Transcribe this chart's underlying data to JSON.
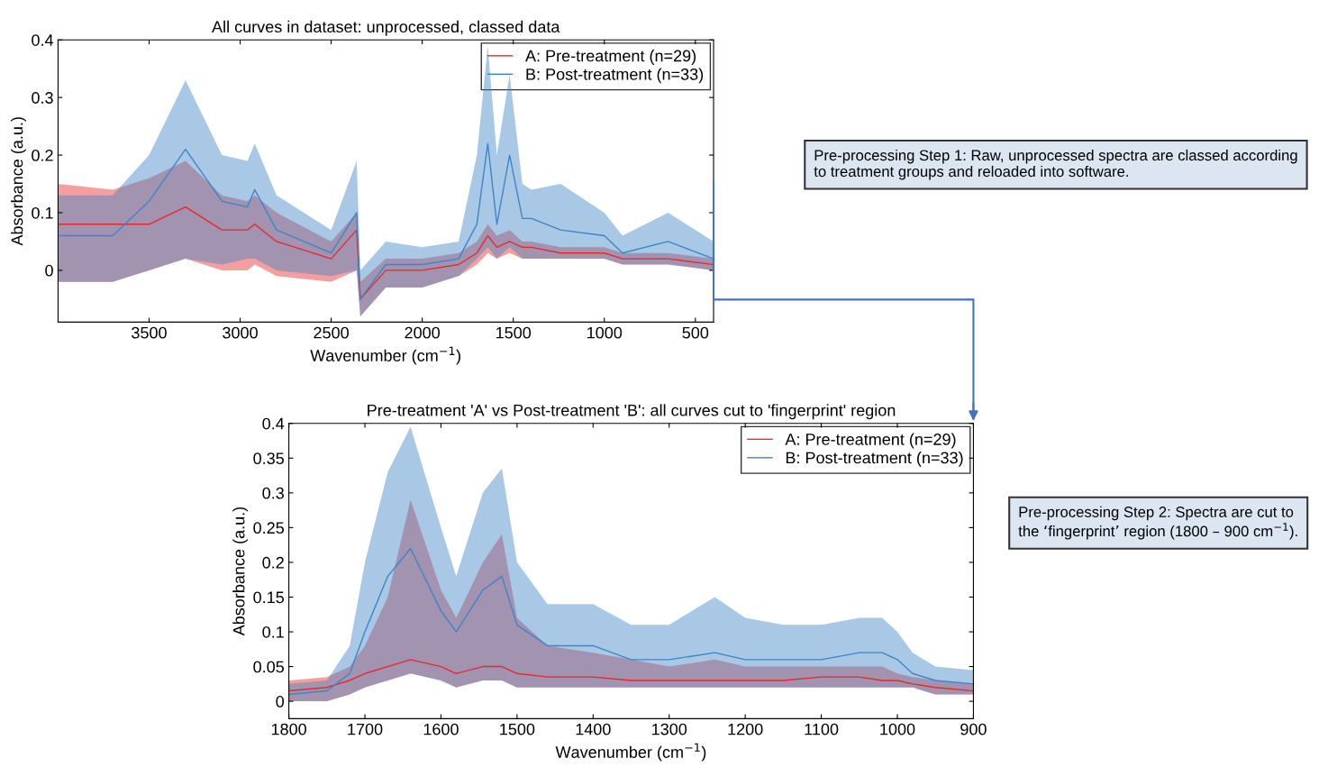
{
  "chart_data": [
    {
      "type": "line",
      "title": "All curves in dataset: unprocessed, classed data",
      "xlabel": "Wavenumber (cm$^{−1}$)",
      "ylabel": "Absorbance (a.u.)",
      "x": [
        4000,
        3700,
        3500,
        3300,
        3100,
        2960,
        2920,
        2800,
        2500,
        2360,
        2340,
        2200,
        2000,
        1800,
        1700,
        1640,
        1590,
        1520,
        1450,
        1400,
        1240,
        1000,
        900,
        650,
        400
      ],
      "series": [
        {
          "name": "A: Pre-treatment (n=29)",
          "color": "#e8282b",
          "values": [
            0.08,
            0.08,
            0.08,
            0.11,
            0.07,
            0.07,
            0.08,
            0.05,
            0.02,
            0.07,
            -0.05,
            0.0,
            0.0,
            0.01,
            0.03,
            0.06,
            0.04,
            0.05,
            0.04,
            0.04,
            0.03,
            0.03,
            0.02,
            0.02,
            0.01
          ],
          "lower": [
            -0.02,
            -0.02,
            0.0,
            0.02,
            0.0,
            0.0,
            0.01,
            -0.01,
            -0.02,
            0.0,
            -0.08,
            -0.03,
            -0.03,
            -0.01,
            0.01,
            0.03,
            0.02,
            0.03,
            0.02,
            0.02,
            0.02,
            0.02,
            0.01,
            0.01,
            0.0
          ],
          "upper": [
            0.15,
            0.14,
            0.16,
            0.19,
            0.13,
            0.12,
            0.13,
            0.1,
            0.05,
            0.1,
            -0.02,
            0.02,
            0.02,
            0.03,
            0.05,
            0.08,
            0.06,
            0.07,
            0.05,
            0.05,
            0.04,
            0.04,
            0.03,
            0.03,
            0.02
          ]
        },
        {
          "name": "B: Post-treatment (n=33)",
          "color": "#3d85c6",
          "values": [
            0.06,
            0.06,
            0.12,
            0.21,
            0.12,
            0.11,
            0.14,
            0.07,
            0.03,
            0.1,
            -0.05,
            0.01,
            0.01,
            0.02,
            0.08,
            0.22,
            0.08,
            0.2,
            0.09,
            0.09,
            0.07,
            0.06,
            0.03,
            0.05,
            0.02
          ],
          "lower": [
            -0.02,
            -0.02,
            0.0,
            0.02,
            0.01,
            0.02,
            0.02,
            0.0,
            -0.01,
            0.0,
            -0.08,
            -0.03,
            -0.03,
            -0.01,
            0.02,
            0.04,
            0.02,
            0.04,
            0.02,
            0.02,
            0.02,
            0.02,
            0.01,
            0.01,
            0.0
          ],
          "upper": [
            0.13,
            0.13,
            0.2,
            0.33,
            0.2,
            0.19,
            0.22,
            0.13,
            0.07,
            0.19,
            0.0,
            0.05,
            0.04,
            0.05,
            0.2,
            0.39,
            0.2,
            0.34,
            0.15,
            0.14,
            0.15,
            0.1,
            0.06,
            0.1,
            0.05
          ]
        }
      ],
      "xlim": [
        4000,
        400
      ],
      "xticks": [
        3500,
        3000,
        2500,
        2000,
        1500,
        1000,
        500
      ],
      "ylim": [
        -0.09,
        0.4
      ],
      "yticks": [
        0,
        0.1,
        0.2,
        0.3,
        0.4
      ],
      "legend": "top right",
      "grid": false,
      "line_style": "solid",
      "annotations": [
        "Pre-processing Step 1: Raw, unprocessed spectra are classed according to treatment groups and reloaded into software."
      ]
    },
    {
      "type": "line",
      "title": "Pre-treatment 'A' vs Post-treatment 'B': all curves cut to 'fingerprint' region",
      "xlabel": "Wavenumber (cm$^{−1}$)",
      "ylabel": "Absorbance (a.u.)",
      "x": [
        1800,
        1750,
        1720,
        1700,
        1670,
        1640,
        1600,
        1580,
        1545,
        1520,
        1500,
        1460,
        1400,
        1350,
        1300,
        1240,
        1200,
        1150,
        1100,
        1050,
        1020,
        1000,
        980,
        950,
        900
      ],
      "series": [
        {
          "name": "A: Pre-treatment (n=29)",
          "color": "#e8282b",
          "values": [
            0.015,
            0.02,
            0.03,
            0.04,
            0.05,
            0.06,
            0.05,
            0.04,
            0.05,
            0.05,
            0.04,
            0.035,
            0.035,
            0.03,
            0.03,
            0.03,
            0.03,
            0.03,
            0.035,
            0.035,
            0.03,
            0.03,
            0.025,
            0.02,
            0.015
          ],
          "lower": [
            0.0,
            0.0,
            0.01,
            0.02,
            0.03,
            0.04,
            0.03,
            0.02,
            0.03,
            0.03,
            0.02,
            0.02,
            0.02,
            0.02,
            0.02,
            0.02,
            0.02,
            0.02,
            0.02,
            0.02,
            0.02,
            0.02,
            0.02,
            0.01,
            0.01
          ],
          "upper": [
            0.03,
            0.035,
            0.05,
            0.08,
            0.15,
            0.29,
            0.16,
            0.12,
            0.2,
            0.24,
            0.12,
            0.08,
            0.07,
            0.06,
            0.05,
            0.06,
            0.05,
            0.05,
            0.05,
            0.05,
            0.05,
            0.04,
            0.035,
            0.03,
            0.025
          ]
        },
        {
          "name": "B: Post-treatment (n=33)",
          "color": "#3d85c6",
          "values": [
            0.01,
            0.015,
            0.04,
            0.1,
            0.18,
            0.22,
            0.13,
            0.1,
            0.16,
            0.18,
            0.11,
            0.08,
            0.08,
            0.06,
            0.06,
            0.07,
            0.06,
            0.06,
            0.06,
            0.07,
            0.07,
            0.06,
            0.04,
            0.03,
            0.025
          ],
          "lower": [
            0.0,
            0.0,
            0.01,
            0.02,
            0.03,
            0.04,
            0.03,
            0.02,
            0.03,
            0.03,
            0.02,
            0.02,
            0.02,
            0.02,
            0.02,
            0.02,
            0.02,
            0.02,
            0.02,
            0.02,
            0.02,
            0.02,
            0.02,
            0.01,
            0.01
          ],
          "upper": [
            0.025,
            0.03,
            0.08,
            0.2,
            0.33,
            0.395,
            0.25,
            0.18,
            0.3,
            0.335,
            0.2,
            0.14,
            0.14,
            0.11,
            0.11,
            0.15,
            0.12,
            0.11,
            0.11,
            0.12,
            0.12,
            0.1,
            0.07,
            0.05,
            0.045
          ]
        }
      ],
      "xlim": [
        1800,
        900
      ],
      "xticks": [
        1800,
        1700,
        1600,
        1500,
        1400,
        1300,
        1200,
        1100,
        1000,
        900
      ],
      "ylim": [
        -0.025,
        0.4
      ],
      "yticks": [
        0,
        0.05,
        0.1,
        0.15,
        0.2,
        0.25,
        0.3,
        0.35,
        0.4
      ],
      "legend": "top right",
      "grid": false,
      "line_style": "solid",
      "annotations": [
        "Pre-processing Step 2: Spectra are cut to the ‘fingerprint’ region (1800 – 900 cm$^{−1}$)."
      ]
    }
  ]
}
